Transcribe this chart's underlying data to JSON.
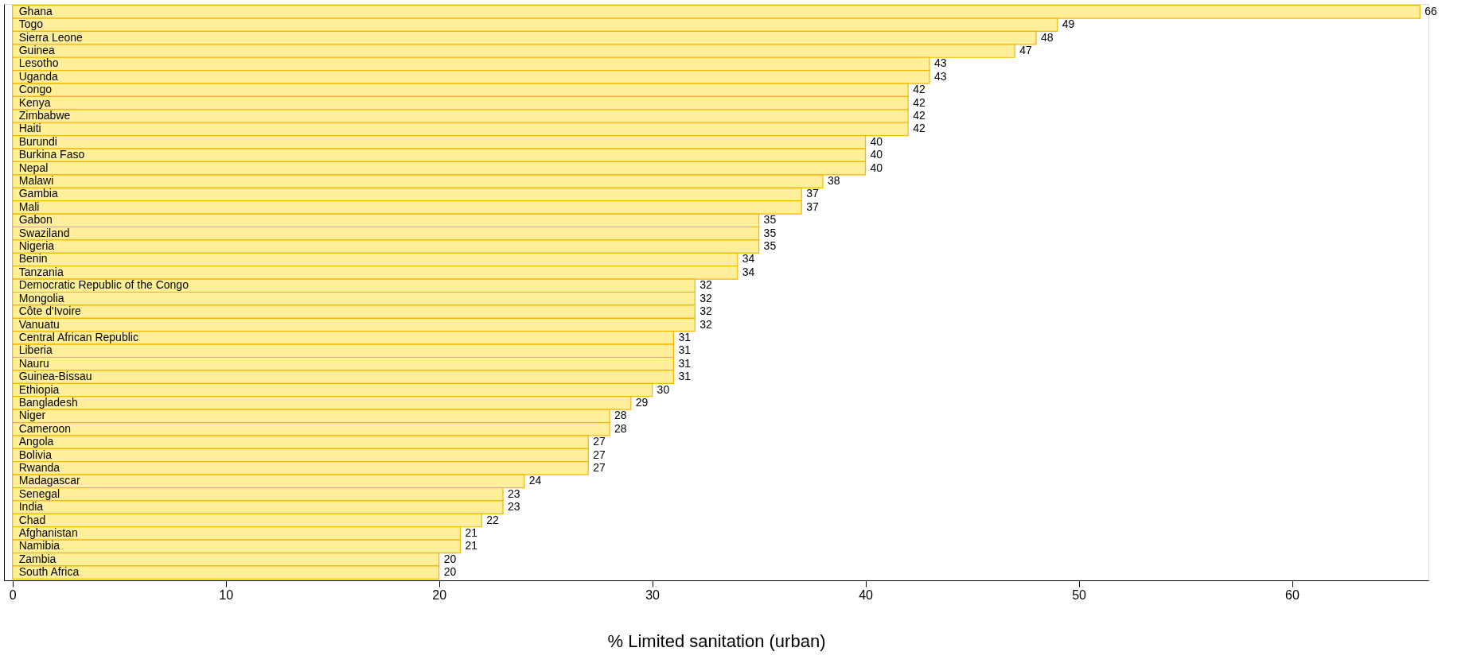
{
  "chart_data": {
    "type": "bar",
    "orientation": "horizontal",
    "xlabel": "% Limited sanitation (urban)",
    "categories": [
      "Ghana",
      "Togo",
      "Sierra Leone",
      "Guinea",
      "Lesotho",
      "Uganda",
      "Congo",
      "Kenya",
      "Zimbabwe",
      "Haiti",
      "Burundi",
      "Burkina Faso",
      "Nepal",
      "Malawi",
      "Gambia",
      "Mali",
      "Gabon",
      "Swaziland",
      "Nigeria",
      "Benin",
      "Tanzania",
      "Democratic Republic of the Congo",
      "Mongolia",
      "Côte d'Ivoire",
      "Vanuatu",
      "Central African Republic",
      "Liberia",
      "Nauru",
      "Guinea-Bissau",
      "Ethiopia",
      "Bangladesh",
      "Niger",
      "Cameroon",
      "Angola",
      "Bolivia",
      "Rwanda",
      "Madagascar",
      "Senegal",
      "India",
      "Chad",
      "Afghanistan",
      "Namibia",
      "Zambia",
      "South Africa"
    ],
    "values": [
      66,
      49,
      48,
      47,
      43,
      43,
      42,
      42,
      42,
      42,
      40,
      40,
      40,
      38,
      37,
      37,
      35,
      35,
      35,
      34,
      34,
      32,
      32,
      32,
      32,
      31,
      31,
      31,
      31,
      30,
      29,
      28,
      28,
      27,
      27,
      27,
      24,
      23,
      23,
      22,
      21,
      21,
      20,
      20
    ],
    "color": "#ffef9a",
    "data_labels": true,
    "grid": false,
    "xlim": [
      -0.4,
      66.4
    ],
    "xticks": [
      0,
      10,
      20,
      30,
      40,
      50,
      60
    ]
  }
}
